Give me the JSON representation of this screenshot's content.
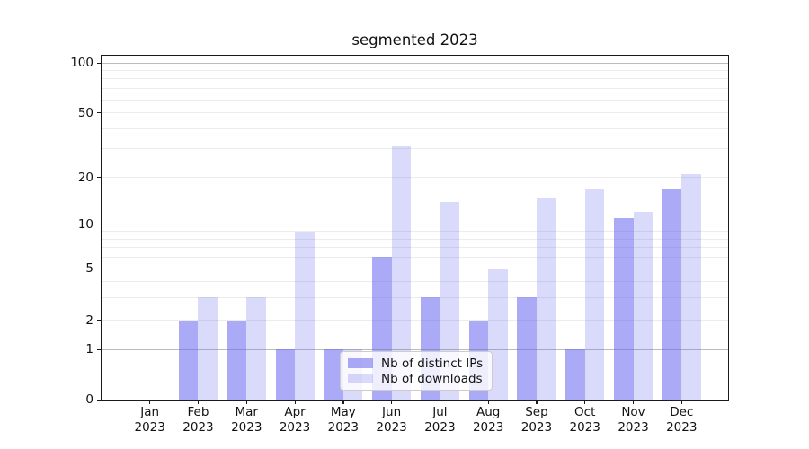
{
  "chart_data": {
    "type": "bar",
    "title": "segmented 2023",
    "categories": [
      "Jan",
      "Feb",
      "Mar",
      "Apr",
      "May",
      "Jun",
      "Jul",
      "Aug",
      "Sep",
      "Oct",
      "Nov",
      "Dec"
    ],
    "category_year": "2023",
    "series": [
      {
        "name": "Nb of distinct IPs",
        "values": [
          0,
          2,
          2,
          1,
          1,
          6,
          3,
          2,
          3,
          1,
          11,
          17
        ],
        "color": "rgba(100,100,238,0.55)"
      },
      {
        "name": "Nb of downloads",
        "values": [
          0,
          3,
          3,
          9,
          1,
          31,
          14,
          5,
          15,
          17,
          12,
          21
        ],
        "color": "rgba(100,100,238,0.24)"
      }
    ],
    "xlabel": "",
    "ylabel": "",
    "grid": true,
    "legend_position": "lower center",
    "y_axis": {
      "scale": "symlog",
      "ylim": [
        0,
        112
      ],
      "tick_values": [
        0,
        1,
        2,
        5,
        10,
        20,
        50,
        100
      ],
      "major_gridlines": [
        1,
        10,
        100
      ],
      "minor_gridlines": [
        2,
        3,
        4,
        5,
        6,
        7,
        8,
        9,
        20,
        30,
        40,
        50,
        60,
        70,
        80,
        90
      ],
      "scale_anchors": [
        [
          0,
          0
        ],
        [
          1,
          0.1462
        ],
        [
          2,
          0.2305
        ],
        [
          5,
          0.3804
        ],
        [
          10,
          0.5083
        ],
        [
          20,
          0.6457
        ],
        [
          50,
          0.8337
        ],
        [
          100,
          0.9791
        ]
      ]
    }
  },
  "colors": {
    "grid_major": "#bbbbbb",
    "grid_minor": "#ececec",
    "spine": "#1a1a1a",
    "text": "#111111",
    "legend_border": "#cccccc",
    "legend_background": "rgba(255,255,255,0.8)"
  }
}
